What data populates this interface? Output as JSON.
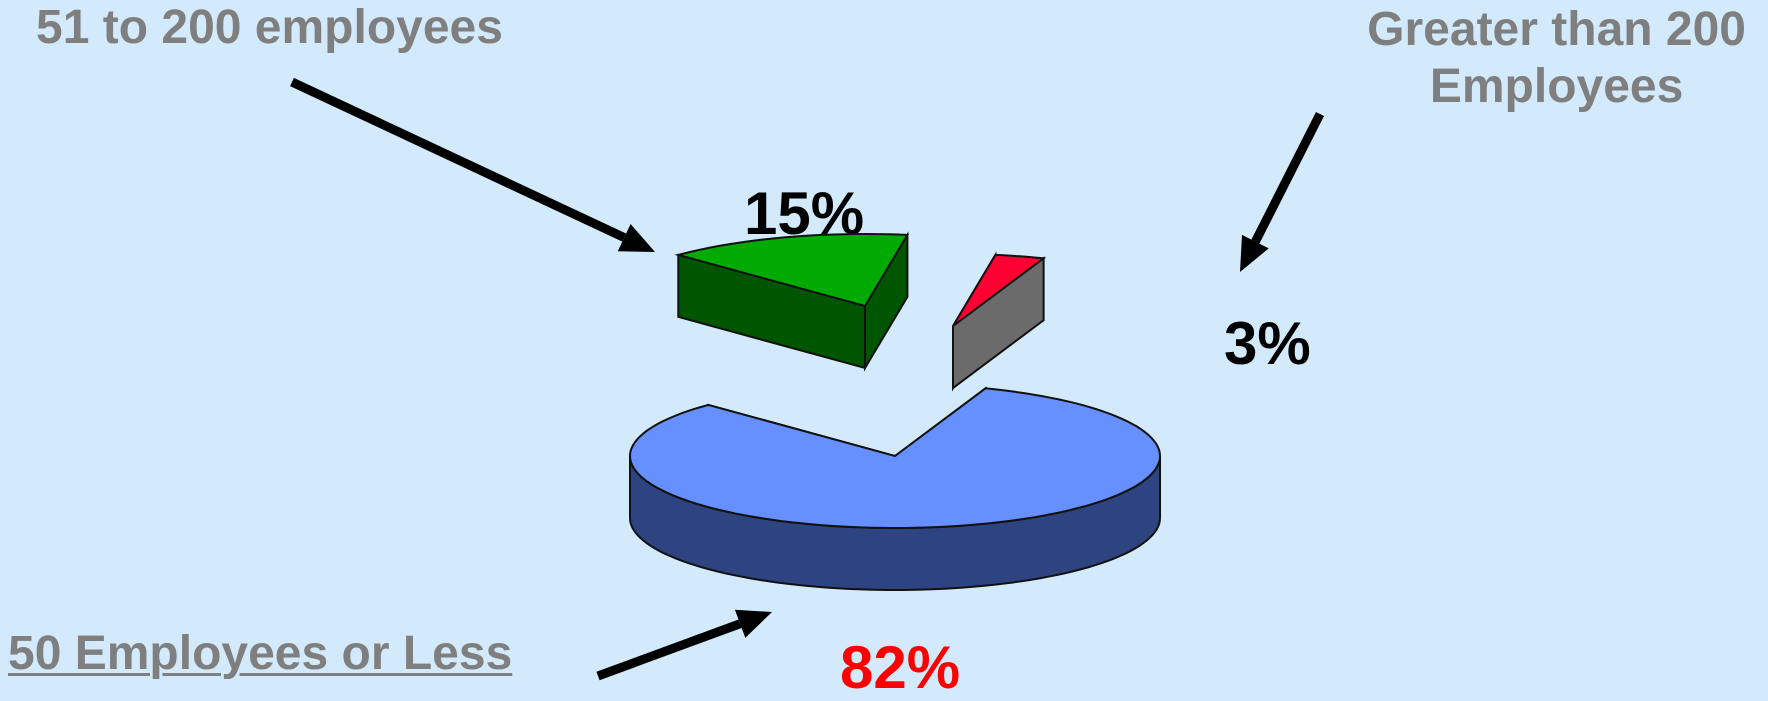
{
  "chart_data": {
    "type": "pie",
    "style": "3d-exploded",
    "slices": [
      {
        "label": "50 Employees or Less",
        "value": 82,
        "value_label": "82%",
        "color": "#6690ff",
        "side_color": "#2e4480",
        "label_underline": true
      },
      {
        "label": "51 to 200 employees",
        "value": 15,
        "value_label": "15%",
        "color": "#00aa00",
        "side_color": "#005500"
      },
      {
        "label": "Greater than 200 Employees",
        "value": 3,
        "value_label": "3%",
        "color": "#ff0033",
        "side_color": "#6b6b6b"
      }
    ],
    "value_label_colors": {
      "82%": "#ff0000",
      "15%": "#000000",
      "3%": "#000000"
    }
  },
  "colors": {
    "background": "#d2eafc",
    "category_label": "#7f7f7f",
    "arrow": "#000000"
  }
}
